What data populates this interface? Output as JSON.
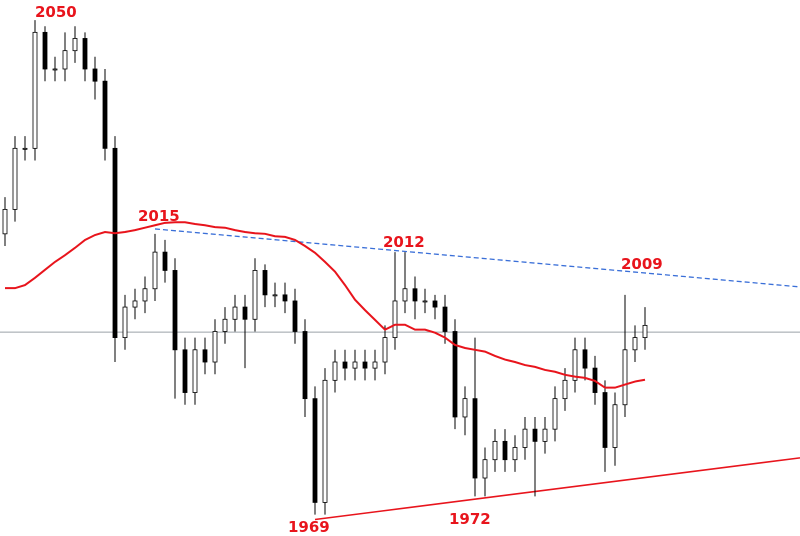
{
  "chart_data": {
    "type": "candlestick",
    "xlim": [
      0,
      80
    ],
    "ylim": [
      1965.5,
      2053.3
    ],
    "open": [
      2015,
      2019,
      2029,
      2029,
      2048,
      2042,
      2042,
      2045,
      2047,
      2042,
      2040,
      2029,
      1998,
      2003,
      2004,
      2006,
      2012,
      2009,
      1996,
      1989,
      1996,
      1994,
      1999,
      2001,
      2003,
      2001,
      2009,
      2005,
      2005,
      2004,
      1999,
      1988,
      1971,
      1991,
      1994,
      1993,
      1994,
      1993,
      1994,
      1998,
      2004,
      2006,
      2004,
      2004,
      2003,
      1999,
      1985,
      1988,
      1975,
      1978,
      1981,
      1978,
      1980,
      1983,
      1981,
      1983,
      1988,
      1991,
      1996,
      1993,
      1989,
      1980,
      1987,
      1996,
      1998
    ],
    "high": [
      2021,
      2031,
      2031,
      2050,
      2049,
      2044,
      2048,
      2049,
      2048,
      2044,
      2042,
      2031,
      2005,
      2006,
      2008,
      2015,
      2014,
      2011,
      1998,
      1998,
      1998,
      2001,
      2003,
      2005,
      2005,
      2011,
      2010,
      2007,
      2007,
      2006,
      2001,
      1990,
      1993,
      1996,
      1996,
      1996,
      1996,
      1996,
      2000,
      2012,
      2012,
      2008,
      2006,
      2005,
      2005,
      2001,
      1990,
      1998,
      1980,
      1983,
      1983,
      1982,
      1985,
      1985,
      1985,
      1990,
      1993,
      1998,
      1998,
      1995,
      1991,
      1989,
      2005,
      2000,
      2003
    ],
    "low": [
      2013,
      2017,
      2027,
      2027,
      2040,
      2040,
      2040,
      2043,
      2040,
      2037,
      2027,
      1994,
      1996,
      2001,
      2002,
      2004,
      2007,
      1988,
      1987,
      1987,
      1992,
      1992,
      1997,
      1999,
      1993,
      1999,
      2003,
      2003,
      2002,
      1997,
      1985,
      1969,
      1969,
      1989,
      1991,
      1991,
      1991,
      1991,
      1992,
      1996,
      2002,
      2001,
      2002,
      2001,
      1997,
      1983,
      1982,
      1972,
      1972,
      1976,
      1976,
      1976,
      1978,
      1972,
      1979,
      1981,
      1986,
      1989,
      1991,
      1987,
      1976,
      1977,
      1985,
      1994,
      1996
    ],
    "close": [
      2019,
      2029,
      2029,
      2048,
      2042,
      2042,
      2045,
      2047,
      2042,
      2040,
      2029,
      1998,
      2003,
      2004,
      2006,
      2012,
      2009,
      1996,
      1989,
      1996,
      1994,
      1999,
      2001,
      2003,
      2001,
      2009,
      2005,
      2005,
      2004,
      1999,
      1988,
      1971,
      1991,
      1994,
      1993,
      1994,
      1993,
      1994,
      1998,
      2004,
      2006,
      2004,
      2004,
      2003,
      1999,
      1985,
      1988,
      1975,
      1978,
      1981,
      1978,
      1980,
      1983,
      1981,
      1983,
      1988,
      1991,
      1996,
      1993,
      1989,
      1980,
      1987,
      1996,
      1998,
      2000
    ],
    "ma": {
      "color": "#e8141c",
      "values": [
        2006.1,
        2006.1,
        2006.6,
        2007.8,
        2009.1,
        2010.4,
        2011.5,
        2012.7,
        2014.0,
        2014.8,
        2015.3,
        2015.1,
        2015.3,
        2015.6,
        2016.0,
        2016.4,
        2016.8,
        2016.9,
        2016.9,
        2016.6,
        2016.4,
        2016.1,
        2016.0,
        2015.6,
        2015.3,
        2015.1,
        2015.0,
        2014.6,
        2014.5,
        2014.0,
        2013.0,
        2011.9,
        2010.4,
        2008.8,
        2006.6,
        2004.2,
        2002.5,
        2000.9,
        1999.3,
        2000.1,
        2000.1,
        1999.3,
        1999.3,
        1998.8,
        1998.0,
        1996.8,
        1996.3,
        1996.0,
        1995.7,
        1995.0,
        1994.4,
        1994.0,
        1993.5,
        1993.2,
        1992.7,
        1992.4,
        1991.9,
        1991.6,
        1991.4,
        1990.9,
        1989.8,
        1989.8,
        1990.3,
        1990.8,
        1991.1
      ]
    },
    "hline": 1998.9,
    "trendlines": [
      {
        "color": "#3a6fd8",
        "dashed": true,
        "x": [
          15.5,
          80
        ],
        "y": [
          2015.8,
          2006.3
        ]
      },
      {
        "color": "#e8141c",
        "dashed": false,
        "x": [
          31.5,
          80
        ],
        "y": [
          1968.2,
          1978.3
        ]
      }
    ],
    "annotations": [
      "2050",
      "2015",
      "2012",
      "2009",
      "1969",
      "1972"
    ]
  }
}
